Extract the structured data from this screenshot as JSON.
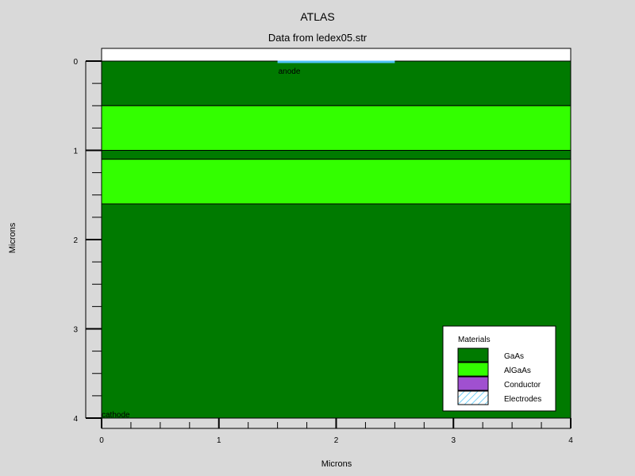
{
  "chart_data": {
    "type": "area",
    "title": "ATLAS",
    "subtitle": "Data from ledex05.str",
    "xlabel": "Microns",
    "ylabel": "Microns",
    "xlim": [
      0,
      4
    ],
    "ylim": [
      0,
      4
    ],
    "y_inverted": true,
    "x_ticks": [
      "0",
      "1",
      "2",
      "3",
      "4"
    ],
    "y_ticks": [
      "0",
      "1",
      "2",
      "3",
      "4"
    ],
    "regions": [
      {
        "material": "GaAs",
        "x0": 0,
        "x1": 4,
        "y0": 0.0,
        "y1": 0.5,
        "color": "#007a00"
      },
      {
        "material": "AlGaAs",
        "x0": 0,
        "x1": 4,
        "y0": 0.5,
        "y1": 1.0,
        "color": "#33ff00"
      },
      {
        "material": "GaAs",
        "x0": 0,
        "x1": 4,
        "y0": 1.0,
        "y1": 1.1,
        "color": "#007a00"
      },
      {
        "material": "AlGaAs",
        "x0": 0,
        "x1": 4,
        "y0": 1.1,
        "y1": 1.6,
        "color": "#33ff00"
      },
      {
        "material": "GaAs",
        "x0": 0,
        "x1": 4,
        "y0": 1.6,
        "y1": 4.0,
        "color": "#007a00"
      }
    ],
    "electrodes": [
      {
        "name": "anode",
        "x0": 1.5,
        "x1": 2.5,
        "y": 0.0,
        "color": "#4fc3f7"
      },
      {
        "name": "cathode",
        "x0": 0,
        "x1": 4,
        "y": 4.0
      }
    ],
    "legend": {
      "title": "Materials",
      "placement": "bottom-right",
      "entries": [
        {
          "label": "GaAs",
          "color": "#007a00",
          "pattern": "solid"
        },
        {
          "label": "AlGaAs",
          "color": "#33ff00",
          "pattern": "solid"
        },
        {
          "label": "Conductor",
          "color": "#a050d0",
          "pattern": "solid"
        },
        {
          "label": "Electrodes",
          "color": "#4fc3f7",
          "pattern": "hatch"
        }
      ]
    }
  }
}
